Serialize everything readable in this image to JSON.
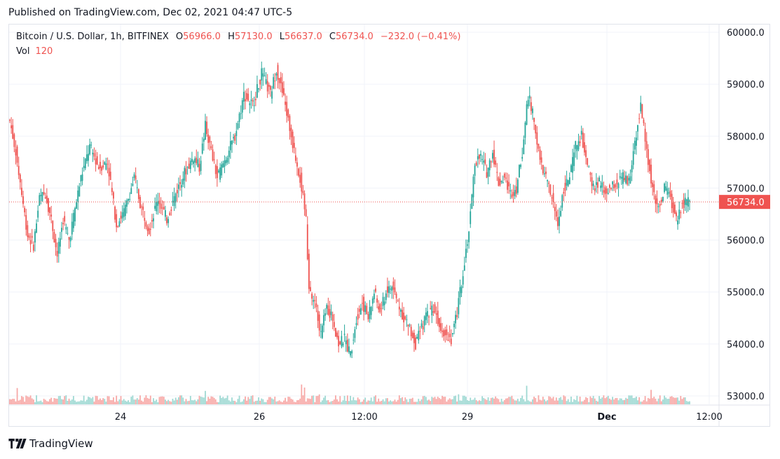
{
  "published": "Published on TradingView.com, Dec 02, 2021 04:47 UTC-5",
  "legend": {
    "symbol": "Bitcoin / U.S. Dollar, 1h, BITFINEX",
    "open_label": "O",
    "open": "56966.0",
    "high_label": "H",
    "high": "57130.0",
    "low_label": "L",
    "low": "56637.0",
    "close_label": "C",
    "close": "56734.0",
    "change": "−232.0 (−0.41%)",
    "vol_label": "Vol",
    "vol": "120"
  },
  "footer": {
    "brand": "TradingView",
    "logo_icon": "tradingview-logo-icon"
  },
  "colors": {
    "up": "#26a69a",
    "down": "#ef5350",
    "up_vol": "#9fd9d3",
    "down_vol": "#f7a9a7",
    "grid": "#f0f3fa",
    "price_tag": "#ef5350"
  },
  "chart_data": {
    "type": "candlestick",
    "title": "Bitcoin / U.S. Dollar, 1h, BITFINEX",
    "ylim": [
      53000,
      60000
    ],
    "y_ticks": [
      "60000.0",
      "59000.0",
      "58000.0",
      "57000.0",
      "56000.0",
      "55000.0",
      "54000.0",
      "53000.0"
    ],
    "x_ticks": [
      "24",
      "26",
      "12:00",
      "29",
      "Dec",
      "12:00"
    ],
    "last_price": "56734.0",
    "grid": true,
    "volume_series": "Vol",
    "anchors": [
      [
        0,
        58300
      ],
      [
        4,
        57700
      ],
      [
        8,
        56900
      ],
      [
        12,
        56100
      ],
      [
        16,
        55900
      ],
      [
        20,
        56800
      ],
      [
        24,
        56900
      ],
      [
        28,
        56400
      ],
      [
        32,
        55700
      ],
      [
        36,
        56400
      ],
      [
        40,
        56000
      ],
      [
        44,
        56600
      ],
      [
        48,
        57200
      ],
      [
        54,
        57800
      ],
      [
        60,
        57400
      ],
      [
        66,
        57500
      ],
      [
        72,
        56300
      ],
      [
        78,
        56600
      ],
      [
        84,
        57200
      ],
      [
        88,
        56700
      ],
      [
        94,
        56200
      ],
      [
        100,
        56800
      ],
      [
        106,
        56400
      ],
      [
        112,
        56900
      ],
      [
        118,
        57300
      ],
      [
        124,
        57600
      ],
      [
        128,
        57400
      ],
      [
        132,
        58200
      ],
      [
        136,
        57700
      ],
      [
        140,
        57200
      ],
      [
        146,
        57600
      ],
      [
        152,
        58000
      ],
      [
        158,
        58800
      ],
      [
        164,
        58600
      ],
      [
        170,
        59200
      ],
      [
        176,
        58800
      ],
      [
        180,
        59300
      ],
      [
        186,
        58600
      ],
      [
        192,
        57700
      ],
      [
        196,
        57200
      ],
      [
        200,
        56400
      ],
      [
        202,
        55000
      ],
      [
        206,
        54800
      ],
      [
        210,
        54200
      ],
      [
        214,
        54700
      ],
      [
        218,
        54500
      ],
      [
        222,
        54000
      ],
      [
        226,
        54100
      ],
      [
        230,
        53800
      ],
      [
        234,
        54500
      ],
      [
        238,
        54800
      ],
      [
        242,
        54500
      ],
      [
        246,
        55000
      ],
      [
        250,
        54600
      ],
      [
        254,
        55000
      ],
      [
        258,
        55100
      ],
      [
        262,
        54800
      ],
      [
        266,
        54500
      ],
      [
        270,
        54300
      ],
      [
        274,
        54000
      ],
      [
        278,
        54300
      ],
      [
        282,
        54600
      ],
      [
        286,
        54700
      ],
      [
        290,
        54400
      ],
      [
        294,
        54200
      ],
      [
        298,
        54100
      ],
      [
        302,
        54600
      ],
      [
        306,
        55400
      ],
      [
        310,
        56200
      ],
      [
        314,
        57500
      ],
      [
        318,
        57600
      ],
      [
        322,
        57300
      ],
      [
        326,
        57700
      ],
      [
        330,
        57100
      ],
      [
        334,
        57200
      ],
      [
        338,
        56900
      ],
      [
        342,
        57000
      ],
      [
        346,
        57700
      ],
      [
        350,
        58800
      ],
      [
        354,
        58300
      ],
      [
        358,
        57500
      ],
      [
        362,
        57200
      ],
      [
        366,
        56800
      ],
      [
        370,
        56300
      ],
      [
        374,
        57000
      ],
      [
        378,
        57200
      ],
      [
        382,
        57800
      ],
      [
        386,
        58000
      ],
      [
        390,
        57400
      ],
      [
        394,
        57000
      ],
      [
        398,
        57100
      ],
      [
        402,
        56900
      ],
      [
        406,
        57000
      ],
      [
        410,
        57100
      ],
      [
        414,
        57200
      ],
      [
        418,
        57100
      ],
      [
        422,
        57900
      ],
      [
        426,
        58600
      ],
      [
        430,
        57700
      ],
      [
        434,
        57000
      ],
      [
        438,
        56600
      ],
      [
        442,
        57000
      ],
      [
        446,
        56800
      ],
      [
        450,
        56400
      ],
      [
        454,
        56700
      ],
      [
        458,
        56740
      ]
    ]
  }
}
